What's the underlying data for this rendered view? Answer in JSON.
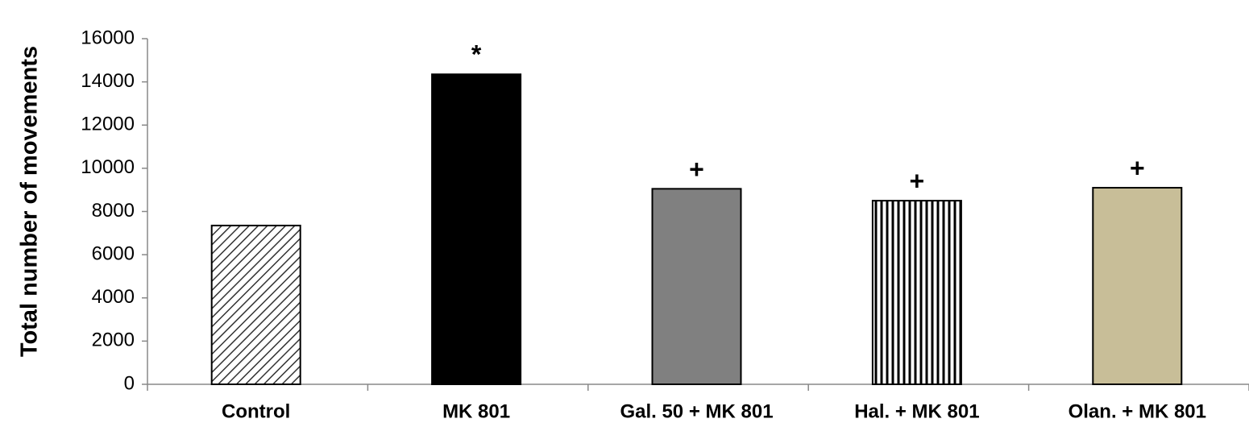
{
  "chart_data": {
    "type": "bar",
    "y_label": "Total number of movements",
    "categories": [
      "Control",
      "MK 801",
      "Gal. 50 + MK 801",
      "Hal. + MK 801",
      "Olan. + MK 801"
    ],
    "values": [
      7350,
      14350,
      9050,
      8500,
      9100
    ],
    "colors": [
      "#ffffff",
      "#000000",
      "#808080",
      "#ffffff",
      "#c8be98"
    ],
    "patterns": [
      "diagonal",
      "solid",
      "solid",
      "vertical",
      "solid"
    ],
    "annotations": [
      null,
      "*",
      "+",
      "+",
      "+"
    ],
    "ylim": [
      0,
      16000
    ],
    "yticks": [
      0,
      2000,
      4000,
      6000,
      8000,
      10000,
      12000,
      14000,
      16000
    ],
    "grid": false
  }
}
